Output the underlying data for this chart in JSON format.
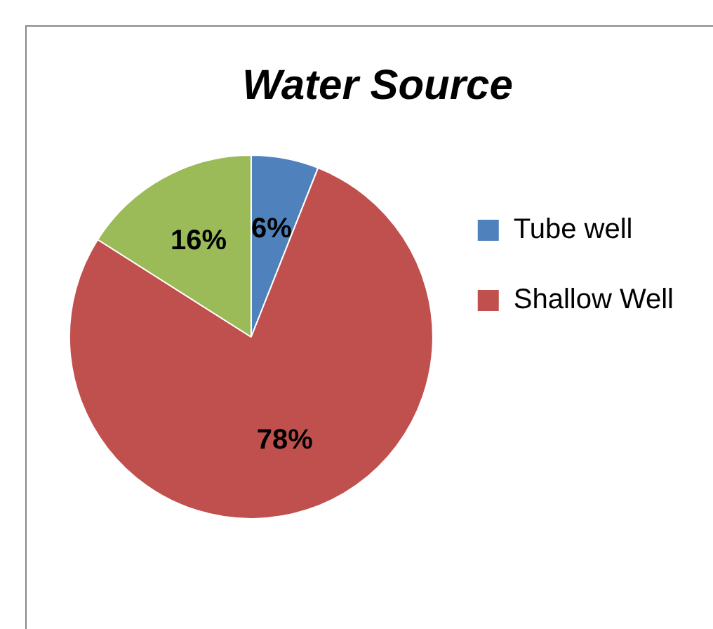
{
  "chart_data": {
    "type": "pie",
    "title": "Water Source",
    "categories": [
      "Tube well",
      "Shallow Well",
      null
    ],
    "values": [
      6,
      78,
      16
    ],
    "colors": [
      "#4f81bd",
      "#c0504d",
      "#9bbb59"
    ],
    "value_labels": [
      "6%",
      "78%",
      "16%"
    ],
    "legend": "right"
  }
}
